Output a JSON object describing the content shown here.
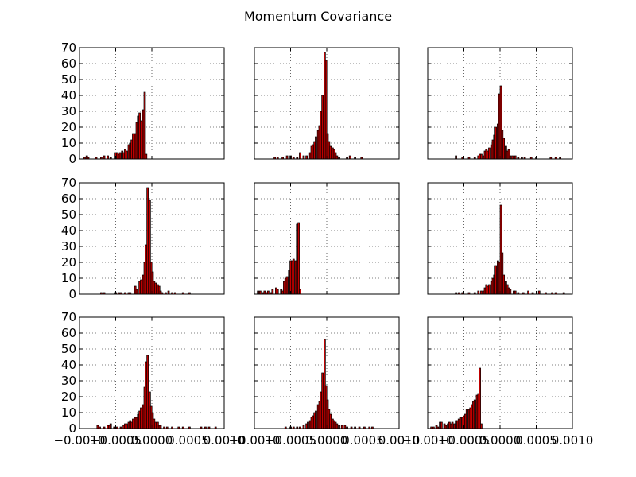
{
  "chart_data": {
    "type": "bar",
    "title": "Momentum Covariance",
    "layout": {
      "rows": 3,
      "cols": 3,
      "sharex": true,
      "sharey": true
    },
    "xlim": [
      -0.001,
      0.001
    ],
    "ylim": [
      0,
      70
    ],
    "xticks": [
      -0.001,
      -0.0005,
      0.0,
      0.0005,
      0.001
    ],
    "xtick_labels": [
      "−0.0010",
      "−0.0005",
      "0.0000",
      "0.0005",
      "0.0010"
    ],
    "yticks": [
      0,
      10,
      20,
      30,
      40,
      50,
      60,
      70
    ],
    "ytick_labels": [
      "0",
      "10",
      "20",
      "30",
      "40",
      "50",
      "60",
      "70"
    ],
    "grid": true,
    "bar_color": "#c00000",
    "bin_width": 2.22e-05,
    "panels": [
      {
        "name": "r1c1",
        "bins": [
          [
            -0.00094,
            1
          ],
          [
            -0.00091,
            2
          ],
          [
            -0.00089,
            1
          ],
          [
            -0.00078,
            1
          ],
          [
            -0.00071,
            1
          ],
          [
            -0.00067,
            2
          ],
          [
            -0.00062,
            2
          ],
          [
            -0.00058,
            1
          ],
          [
            -0.00051,
            4
          ],
          [
            -0.00049,
            4
          ],
          [
            -0.00047,
            3
          ],
          [
            -0.00045,
            4
          ],
          [
            -0.00042,
            5
          ],
          [
            -0.0004,
            4
          ],
          [
            -0.00038,
            6
          ],
          [
            -0.00036,
            5
          ],
          [
            -0.00033,
            9
          ],
          [
            -0.00031,
            10
          ],
          [
            -0.00029,
            12
          ],
          [
            -0.00027,
            16
          ],
          [
            -0.00024,
            16
          ],
          [
            -0.00022,
            23
          ],
          [
            -0.0002,
            27
          ],
          [
            -0.00018,
            29
          ],
          [
            -0.00016,
            24
          ],
          [
            -0.00013,
            31
          ],
          [
            -0.00011,
            42
          ],
          [
            -9e-05,
            3
          ]
        ]
      },
      {
        "name": "r1c2",
        "bins": [
          [
            -0.00073,
            1
          ],
          [
            -0.00069,
            1
          ],
          [
            -0.00062,
            1
          ],
          [
            -0.00056,
            2
          ],
          [
            -0.00051,
            2
          ],
          [
            -0.00047,
            1
          ],
          [
            -0.00042,
            1
          ],
          [
            -0.00038,
            4
          ],
          [
            -0.00033,
            2
          ],
          [
            -0.00029,
            2
          ],
          [
            -0.00024,
            4
          ],
          [
            -0.00022,
            8
          ],
          [
            -0.0002,
            9
          ],
          [
            -0.00018,
            11
          ],
          [
            -0.00016,
            14
          ],
          [
            -0.00013,
            18
          ],
          [
            -0.00011,
            21
          ],
          [
            -9e-05,
            30
          ],
          [
            -7e-05,
            40
          ],
          [
            -4e-05,
            67
          ],
          [
            -2e-05,
            62
          ],
          [
            0.0,
            16
          ],
          [
            2e-05,
            11
          ],
          [
            4e-05,
            8
          ],
          [
            7e-05,
            7
          ],
          [
            9e-05,
            6
          ],
          [
            0.00011,
            4
          ],
          [
            0.00013,
            2
          ],
          [
            0.00016,
            1
          ],
          [
            0.00027,
            1
          ],
          [
            0.00031,
            2
          ],
          [
            0.00038,
            1
          ],
          [
            0.00047,
            1
          ]
        ]
      },
      {
        "name": "r1c3",
        "bins": [
          [
            -0.00062,
            2
          ],
          [
            -0.00053,
            1
          ],
          [
            -0.00044,
            1
          ],
          [
            -0.00036,
            1
          ],
          [
            -0.00031,
            2
          ],
          [
            -0.00029,
            3
          ],
          [
            -0.00027,
            3
          ],
          [
            -0.00024,
            2
          ],
          [
            -0.00022,
            5
          ],
          [
            -0.0002,
            6
          ],
          [
            -0.00018,
            5
          ],
          [
            -0.00016,
            7
          ],
          [
            -0.00013,
            9
          ],
          [
            -0.00011,
            12
          ],
          [
            -9e-05,
            15
          ],
          [
            -7e-05,
            20
          ],
          [
            -4e-05,
            22
          ],
          [
            -2e-05,
            41
          ],
          [
            0.0,
            46
          ],
          [
            2e-05,
            18
          ],
          [
            4e-05,
            13
          ],
          [
            7e-05,
            8
          ],
          [
            9e-05,
            5
          ],
          [
            0.00011,
            6
          ],
          [
            0.00013,
            2
          ],
          [
            0.00016,
            2
          ],
          [
            0.0002,
            2
          ],
          [
            0.00024,
            1
          ],
          [
            0.00029,
            1
          ],
          [
            0.00033,
            1
          ],
          [
            0.00042,
            1
          ],
          [
            0.00049,
            1
          ],
          [
            0.00069,
            1
          ],
          [
            0.00076,
            1
          ],
          [
            0.00082,
            1
          ]
        ]
      },
      {
        "name": "r2c1",
        "bins": [
          [
            -0.00071,
            1
          ],
          [
            -0.00067,
            1
          ],
          [
            -0.00051,
            1
          ],
          [
            -0.00047,
            1
          ],
          [
            -0.00044,
            1
          ],
          [
            -0.00038,
            1
          ],
          [
            -0.00033,
            1
          ],
          [
            -0.00031,
            1
          ],
          [
            -0.00024,
            5
          ],
          [
            -0.00022,
            3
          ],
          [
            -0.00018,
            8
          ],
          [
            -0.00016,
            9
          ],
          [
            -0.00013,
            12
          ],
          [
            -0.00011,
            20
          ],
          [
            -9e-05,
            31
          ],
          [
            -7e-05,
            67
          ],
          [
            -4e-05,
            59
          ],
          [
            -2e-05,
            20
          ],
          [
            0.0,
            14
          ],
          [
            2e-05,
            8
          ],
          [
            4e-05,
            7
          ],
          [
            7e-05,
            6
          ],
          [
            9e-05,
            5
          ],
          [
            0.00011,
            2
          ],
          [
            0.00013,
            1
          ],
          [
            0.00018,
            1
          ],
          [
            0.00022,
            2
          ],
          [
            0.00027,
            1
          ],
          [
            0.00031,
            1
          ],
          [
            0.00042,
            1
          ],
          [
            0.00051,
            1
          ]
        ]
      },
      {
        "name": "r2c2",
        "bins": [
          [
            -0.00096,
            2
          ],
          [
            -0.00093,
            2
          ],
          [
            -0.00089,
            1
          ],
          [
            -0.00087,
            2
          ],
          [
            -0.00084,
            1
          ],
          [
            -0.00082,
            2
          ],
          [
            -0.00078,
            1
          ],
          [
            -0.00076,
            3
          ],
          [
            -0.00071,
            4
          ],
          [
            -0.00069,
            3
          ],
          [
            -0.00064,
            3
          ],
          [
            -0.00062,
            2
          ],
          [
            -0.0006,
            8
          ],
          [
            -0.00058,
            10
          ],
          [
            -0.00056,
            11
          ],
          [
            -0.00053,
            15
          ],
          [
            -0.00051,
            21
          ],
          [
            -0.00049,
            21
          ],
          [
            -0.00047,
            22
          ],
          [
            -0.00044,
            21
          ],
          [
            -0.00042,
            44
          ],
          [
            -0.0004,
            45
          ],
          [
            -0.00038,
            3
          ]
        ]
      },
      {
        "name": "r2c3",
        "bins": [
          [
            -0.00062,
            1
          ],
          [
            -0.00058,
            1
          ],
          [
            -0.00053,
            1
          ],
          [
            -0.00044,
            1
          ],
          [
            -0.00036,
            1
          ],
          [
            -0.00031,
            2
          ],
          [
            -0.00027,
            2
          ],
          [
            -0.00024,
            2
          ],
          [
            -0.00022,
            4
          ],
          [
            -0.0002,
            6
          ],
          [
            -0.00018,
            5
          ],
          [
            -0.00016,
            6
          ],
          [
            -0.00013,
            8
          ],
          [
            -0.00011,
            10
          ],
          [
            -9e-05,
            12
          ],
          [
            -7e-05,
            18
          ],
          [
            -4e-05,
            21
          ],
          [
            -2e-05,
            20
          ],
          [
            0.0,
            56
          ],
          [
            2e-05,
            26
          ],
          [
            4e-05,
            12
          ],
          [
            7e-05,
            8
          ],
          [
            9e-05,
            6
          ],
          [
            0.00011,
            4
          ],
          [
            0.00013,
            3
          ],
          [
            0.00018,
            2
          ],
          [
            0.0002,
            2
          ],
          [
            0.00024,
            1
          ],
          [
            0.00031,
            1
          ],
          [
            0.00038,
            2
          ],
          [
            0.00044,
            1
          ],
          [
            0.00053,
            2
          ],
          [
            0.00062,
            1
          ],
          [
            0.00071,
            1
          ],
          [
            0.00076,
            1
          ],
          [
            0.00087,
            1
          ]
        ]
      },
      {
        "name": "r3c1",
        "bins": [
          [
            -0.00076,
            2
          ],
          [
            -0.00073,
            1
          ],
          [
            -0.00067,
            1
          ],
          [
            -0.00062,
            2
          ],
          [
            -0.0006,
            2
          ],
          [
            -0.00058,
            3
          ],
          [
            -0.00053,
            1
          ],
          [
            -0.00049,
            1
          ],
          [
            -0.00044,
            1
          ],
          [
            -0.0004,
            2
          ],
          [
            -0.00038,
            3
          ],
          [
            -0.00036,
            3
          ],
          [
            -0.00033,
            4
          ],
          [
            -0.00031,
            5
          ],
          [
            -0.00029,
            4
          ],
          [
            -0.00027,
            6
          ],
          [
            -0.00024,
            7
          ],
          [
            -0.00022,
            7
          ],
          [
            -0.0002,
            9
          ],
          [
            -0.00018,
            11
          ],
          [
            -0.00016,
            13
          ],
          [
            -0.00013,
            15
          ],
          [
            -0.00011,
            26
          ],
          [
            -9e-05,
            42
          ],
          [
            -7e-05,
            46
          ],
          [
            -4e-05,
            23
          ],
          [
            -2e-05,
            14
          ],
          [
            0.0,
            10
          ],
          [
            2e-05,
            6
          ],
          [
            4e-05,
            4
          ],
          [
            7e-05,
            4
          ],
          [
            9e-05,
            2
          ],
          [
            0.00011,
            2
          ],
          [
            0.00016,
            1
          ],
          [
            0.0002,
            1
          ],
          [
            0.00027,
            1
          ],
          [
            0.00036,
            1
          ],
          [
            0.00042,
            1
          ],
          [
            0.00051,
            1
          ],
          [
            0.00067,
            1
          ],
          [
            0.00073,
            1
          ],
          [
            0.00078,
            1
          ],
          [
            0.00087,
            1
          ]
        ]
      },
      {
        "name": "r3c2",
        "bins": [
          [
            -0.00058,
            1
          ],
          [
            -0.00051,
            1
          ],
          [
            -0.00047,
            1
          ],
          [
            -0.00042,
            1
          ],
          [
            -0.00038,
            1
          ],
          [
            -0.00033,
            2
          ],
          [
            -0.00029,
            3
          ],
          [
            -0.00027,
            4
          ],
          [
            -0.00024,
            5
          ],
          [
            -0.00022,
            7
          ],
          [
            -0.0002,
            8
          ],
          [
            -0.00018,
            10
          ],
          [
            -0.00016,
            11
          ],
          [
            -0.00013,
            15
          ],
          [
            -0.00011,
            17
          ],
          [
            -9e-05,
            23
          ],
          [
            -7e-05,
            35
          ],
          [
            -4e-05,
            56
          ],
          [
            -2e-05,
            27
          ],
          [
            0.0,
            18
          ],
          [
            2e-05,
            12
          ],
          [
            4e-05,
            9
          ],
          [
            7e-05,
            6
          ],
          [
            9e-05,
            5
          ],
          [
            0.00011,
            4
          ],
          [
            0.00013,
            3
          ],
          [
            0.00016,
            2
          ],
          [
            0.0002,
            2
          ],
          [
            0.00024,
            2
          ],
          [
            0.00027,
            1
          ],
          [
            0.00033,
            1
          ],
          [
            0.00038,
            1
          ],
          [
            0.00044,
            1
          ],
          [
            0.00051,
            1
          ],
          [
            0.00058,
            1
          ],
          [
            0.00062,
            1
          ]
        ]
      },
      {
        "name": "r3c3",
        "bins": [
          [
            -0.00096,
            1
          ],
          [
            -0.00093,
            1
          ],
          [
            -0.00089,
            2
          ],
          [
            -0.00087,
            1
          ],
          [
            -0.00084,
            4
          ],
          [
            -0.00082,
            4
          ],
          [
            -0.00078,
            3
          ],
          [
            -0.00076,
            2
          ],
          [
            -0.00073,
            3
          ],
          [
            -0.00071,
            4
          ],
          [
            -0.00069,
            3
          ],
          [
            -0.00067,
            4
          ],
          [
            -0.00064,
            3
          ],
          [
            -0.00062,
            5
          ],
          [
            -0.0006,
            5
          ],
          [
            -0.00058,
            6
          ],
          [
            -0.00056,
            7
          ],
          [
            -0.00053,
            7
          ],
          [
            -0.00051,
            8
          ],
          [
            -0.00049,
            9
          ],
          [
            -0.00047,
            12
          ],
          [
            -0.00044,
            12
          ],
          [
            -0.00042,
            13
          ],
          [
            -0.0004,
            15
          ],
          [
            -0.00038,
            17
          ],
          [
            -0.00036,
            18
          ],
          [
            -0.00033,
            21
          ],
          [
            -0.00031,
            22
          ],
          [
            -0.00029,
            38
          ],
          [
            -0.00027,
            3
          ]
        ]
      }
    ]
  }
}
